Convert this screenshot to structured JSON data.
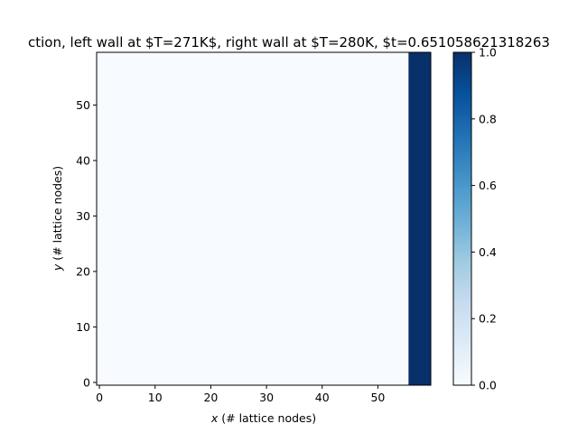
{
  "chart_data": {
    "type": "heatmap",
    "title": "ction, left wall at $T=271K$, right wall at $T=280K, $t=0.651058621318263",
    "xlabel_var": "x",
    "xlabel_rest": " (# lattice nodes)",
    "ylabel_var": "y",
    "ylabel_rest": " (# lattice nodes)",
    "grid": {
      "nx": 60,
      "ny": 60
    },
    "xlim": [
      -0.5,
      59.5
    ],
    "ylim": [
      -0.5,
      59.5
    ],
    "xticks": [
      0,
      10,
      20,
      30,
      40,
      50
    ],
    "yticks": [
      0,
      10,
      20,
      30,
      40,
      50
    ],
    "value_regions": [
      {
        "x_range": [
          0,
          55
        ],
        "value": 0.0
      },
      {
        "x_range": [
          56,
          59
        ],
        "value": 1.0
      }
    ],
    "colormap": "Blues",
    "colorbar": {
      "min": 0.0,
      "max": 1.0,
      "ticks": [
        "0.0",
        "0.2",
        "0.4",
        "0.6",
        "0.8",
        "1.0"
      ]
    },
    "colors": {
      "low": "#f7fbff",
      "high": "#08306b"
    }
  }
}
